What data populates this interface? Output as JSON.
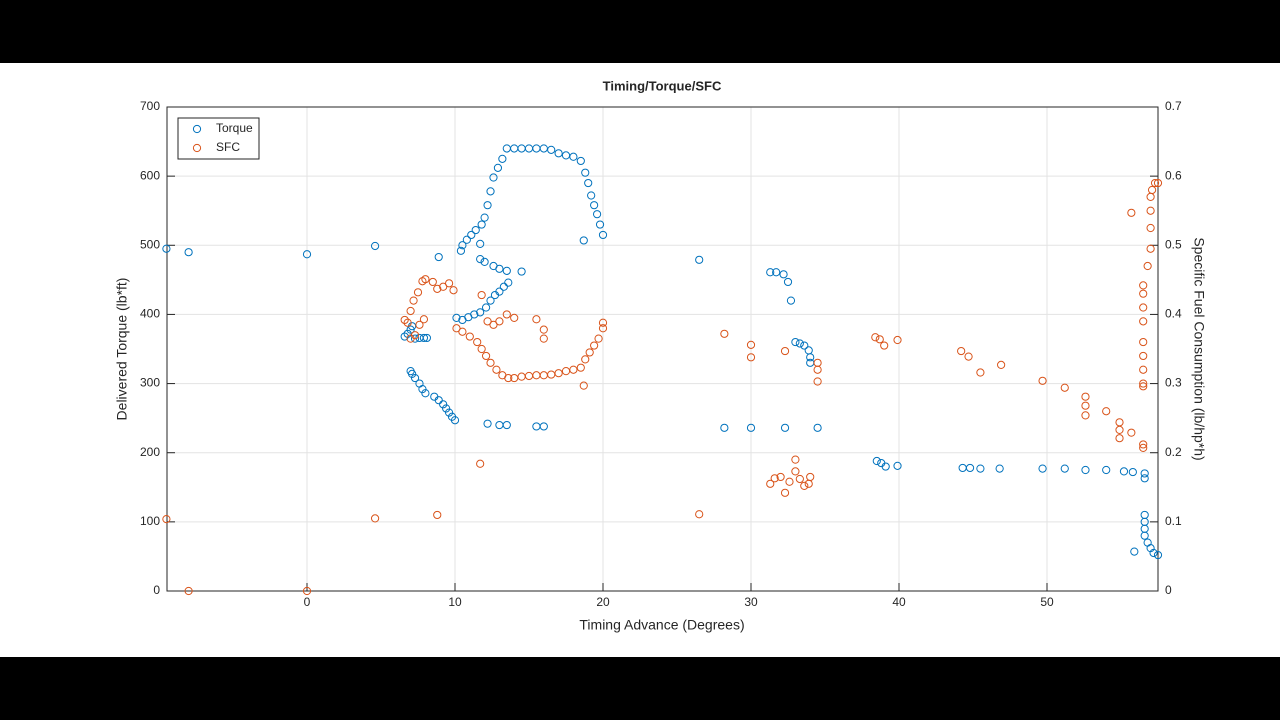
{
  "chart_data": {
    "type": "scatter",
    "title": "Timing/Torque/SFC",
    "x_label": "Timing Advance (Degrees)",
    "y_label": "Delivered Torque (lb*ft)",
    "y2_label": "Specific Fuel Consumption (lb/hp*h)",
    "xlim": [
      -9.46,
      57.5
    ],
    "xticks": [
      0,
      10,
      20,
      30,
      40,
      50
    ],
    "ylim": [
      0,
      700
    ],
    "yticks": [
      0,
      100,
      200,
      300,
      400,
      500,
      600,
      700
    ],
    "y2lim": [
      0,
      0.7
    ],
    "y2ticks": [
      0,
      0.1,
      0.2,
      0.3,
      0.4,
      0.5,
      0.6,
      0.7
    ],
    "grid": true,
    "legend": "northwest",
    "series": [
      {
        "name": "Torque",
        "color": "#0072bd",
        "x": [
          -9.5,
          -8,
          0,
          4.6,
          8.9,
          6.6,
          6.8,
          7,
          7.1,
          7.3,
          7.6,
          7.9,
          8.1,
          7,
          7.1,
          7.3,
          7.6,
          7.8,
          8,
          8.6,
          8.9,
          9.2,
          9.4,
          9.6,
          9.8,
          10,
          10.1,
          10.5,
          10.9,
          11.3,
          11.7,
          12.1,
          12.4,
          12.7,
          13,
          13.3,
          13.6,
          10.4,
          10.5,
          10.8,
          11.1,
          11.4,
          11.8,
          12,
          12.2,
          12.4,
          12.6,
          12.9,
          13.2,
          13.5,
          14,
          14.5,
          15,
          15.5,
          16,
          16.5,
          17,
          17.5,
          18,
          18.5,
          18.8,
          19,
          19.2,
          19.4,
          19.6,
          19.8,
          20,
          11.7,
          11.7,
          12,
          12.6,
          13,
          13.5,
          14.5,
          18.7,
          12.2,
          13,
          13.5,
          15.5,
          16,
          26.5,
          28.2,
          30,
          32.3,
          34.5,
          31.3,
          31.7,
          32.2,
          32.5,
          32.7,
          33,
          33.3,
          33.6,
          33.9,
          34,
          34,
          38.5,
          38.8,
          39.1,
          39.9,
          44.3,
          44.8,
          45.5,
          46.8,
          49.7,
          51.2,
          52.6,
          54,
          55.2,
          55.8,
          56.6,
          56.6,
          55.9,
          56.6,
          56.6,
          56.6,
          56.6,
          56.8,
          57,
          57.2,
          57.5
        ],
        "values": [
          495,
          490,
          487,
          499,
          483,
          368,
          372,
          378,
          383,
          365,
          366,
          366,
          366,
          318,
          314,
          308,
          300,
          292,
          286,
          281,
          276,
          270,
          264,
          258,
          252,
          247,
          395,
          392,
          396,
          400,
          403,
          410,
          420,
          428,
          433,
          440,
          446,
          492,
          500,
          508,
          515,
          522,
          530,
          540,
          558,
          578,
          598,
          612,
          625,
          640,
          640,
          640,
          640,
          640,
          640,
          638,
          633,
          630,
          628,
          622,
          605,
          590,
          572,
          558,
          545,
          530,
          515,
          502,
          480,
          476,
          470,
          466,
          463,
          462,
          507,
          242,
          240,
          240,
          238,
          238,
          479,
          236,
          236,
          236,
          236,
          461,
          461,
          458,
          447,
          420,
          360,
          358,
          355,
          348,
          338,
          330,
          188,
          185,
          180,
          181,
          178,
          178,
          177,
          177,
          177,
          177,
          175,
          175,
          173,
          172,
          170,
          163,
          57,
          110,
          100,
          90,
          80,
          70,
          62,
          55,
          52
        ]
      },
      {
        "name": "SFC",
        "color": "#d95319",
        "axis": "y2",
        "x": [
          -9.5,
          -8,
          0,
          4.6,
          8.8,
          6.6,
          6.8,
          7,
          7.2,
          7.5,
          7.8,
          8,
          8.5,
          8.8,
          9.2,
          9.6,
          9.9,
          7,
          7.3,
          7.6,
          7.9,
          10.1,
          10.5,
          11,
          11.5,
          11.8,
          12.1,
          12.4,
          12.8,
          13.2,
          13.6,
          14,
          14.5,
          15,
          15.5,
          16,
          16.5,
          17,
          17.5,
          18,
          18.5,
          18.8,
          19.1,
          19.4,
          19.7,
          20,
          20,
          11.8,
          12.2,
          12.6,
          13,
          13.5,
          14,
          15.5,
          16,
          16,
          18.7,
          11.7,
          26.5,
          28.2,
          30,
          30,
          32.3,
          31.3,
          31.6,
          32,
          32.3,
          32.6,
          33,
          33,
          33.3,
          33.6,
          33.9,
          34,
          34.5,
          34.5,
          34.5,
          38.4,
          38.7,
          39,
          39.9,
          44.2,
          44.7,
          45.5,
          46.9,
          49.7,
          51.2,
          52.6,
          52.6,
          52.6,
          54,
          54.9,
          54.9,
          54.9,
          55.7,
          55.7,
          56.5,
          56.5,
          56.5,
          56.5,
          56.5,
          56.5,
          56.5,
          56.5,
          56.5,
          56.5,
          56.5,
          56.8,
          57,
          57,
          57,
          57,
          57.1,
          57.3,
          57.5
        ],
        "values": [
          0.104,
          0,
          0,
          0.105,
          0.11,
          0.392,
          0.388,
          0.405,
          0.42,
          0.432,
          0.448,
          0.451,
          0.447,
          0.437,
          0.44,
          0.445,
          0.435,
          0.365,
          0.37,
          0.385,
          0.393,
          0.38,
          0.375,
          0.368,
          0.36,
          0.35,
          0.34,
          0.33,
          0.32,
          0.312,
          0.308,
          0.308,
          0.31,
          0.311,
          0.312,
          0.312,
          0.313,
          0.315,
          0.318,
          0.32,
          0.323,
          0.335,
          0.345,
          0.355,
          0.365,
          0.38,
          0.388,
          0.428,
          0.39,
          0.385,
          0.39,
          0.4,
          0.395,
          0.393,
          0.378,
          0.365,
          0.297,
          0.184,
          0.111,
          0.372,
          0.356,
          0.338,
          0.347,
          0.155,
          0.163,
          0.165,
          0.142,
          0.158,
          0.173,
          0.19,
          0.162,
          0.152,
          0.155,
          0.165,
          0.33,
          0.32,
          0.303,
          0.367,
          0.364,
          0.355,
          0.363,
          0.347,
          0.339,
          0.316,
          0.327,
          0.304,
          0.294,
          0.281,
          0.268,
          0.254,
          0.26,
          0.244,
          0.233,
          0.221,
          0.229,
          0.547,
          0.207,
          0.212,
          0.296,
          0.3,
          0.32,
          0.34,
          0.36,
          0.39,
          0.41,
          0.43,
          0.442,
          0.47,
          0.495,
          0.525,
          0.55,
          0.57,
          0.58,
          0.59,
          0.59
        ]
      }
    ]
  }
}
